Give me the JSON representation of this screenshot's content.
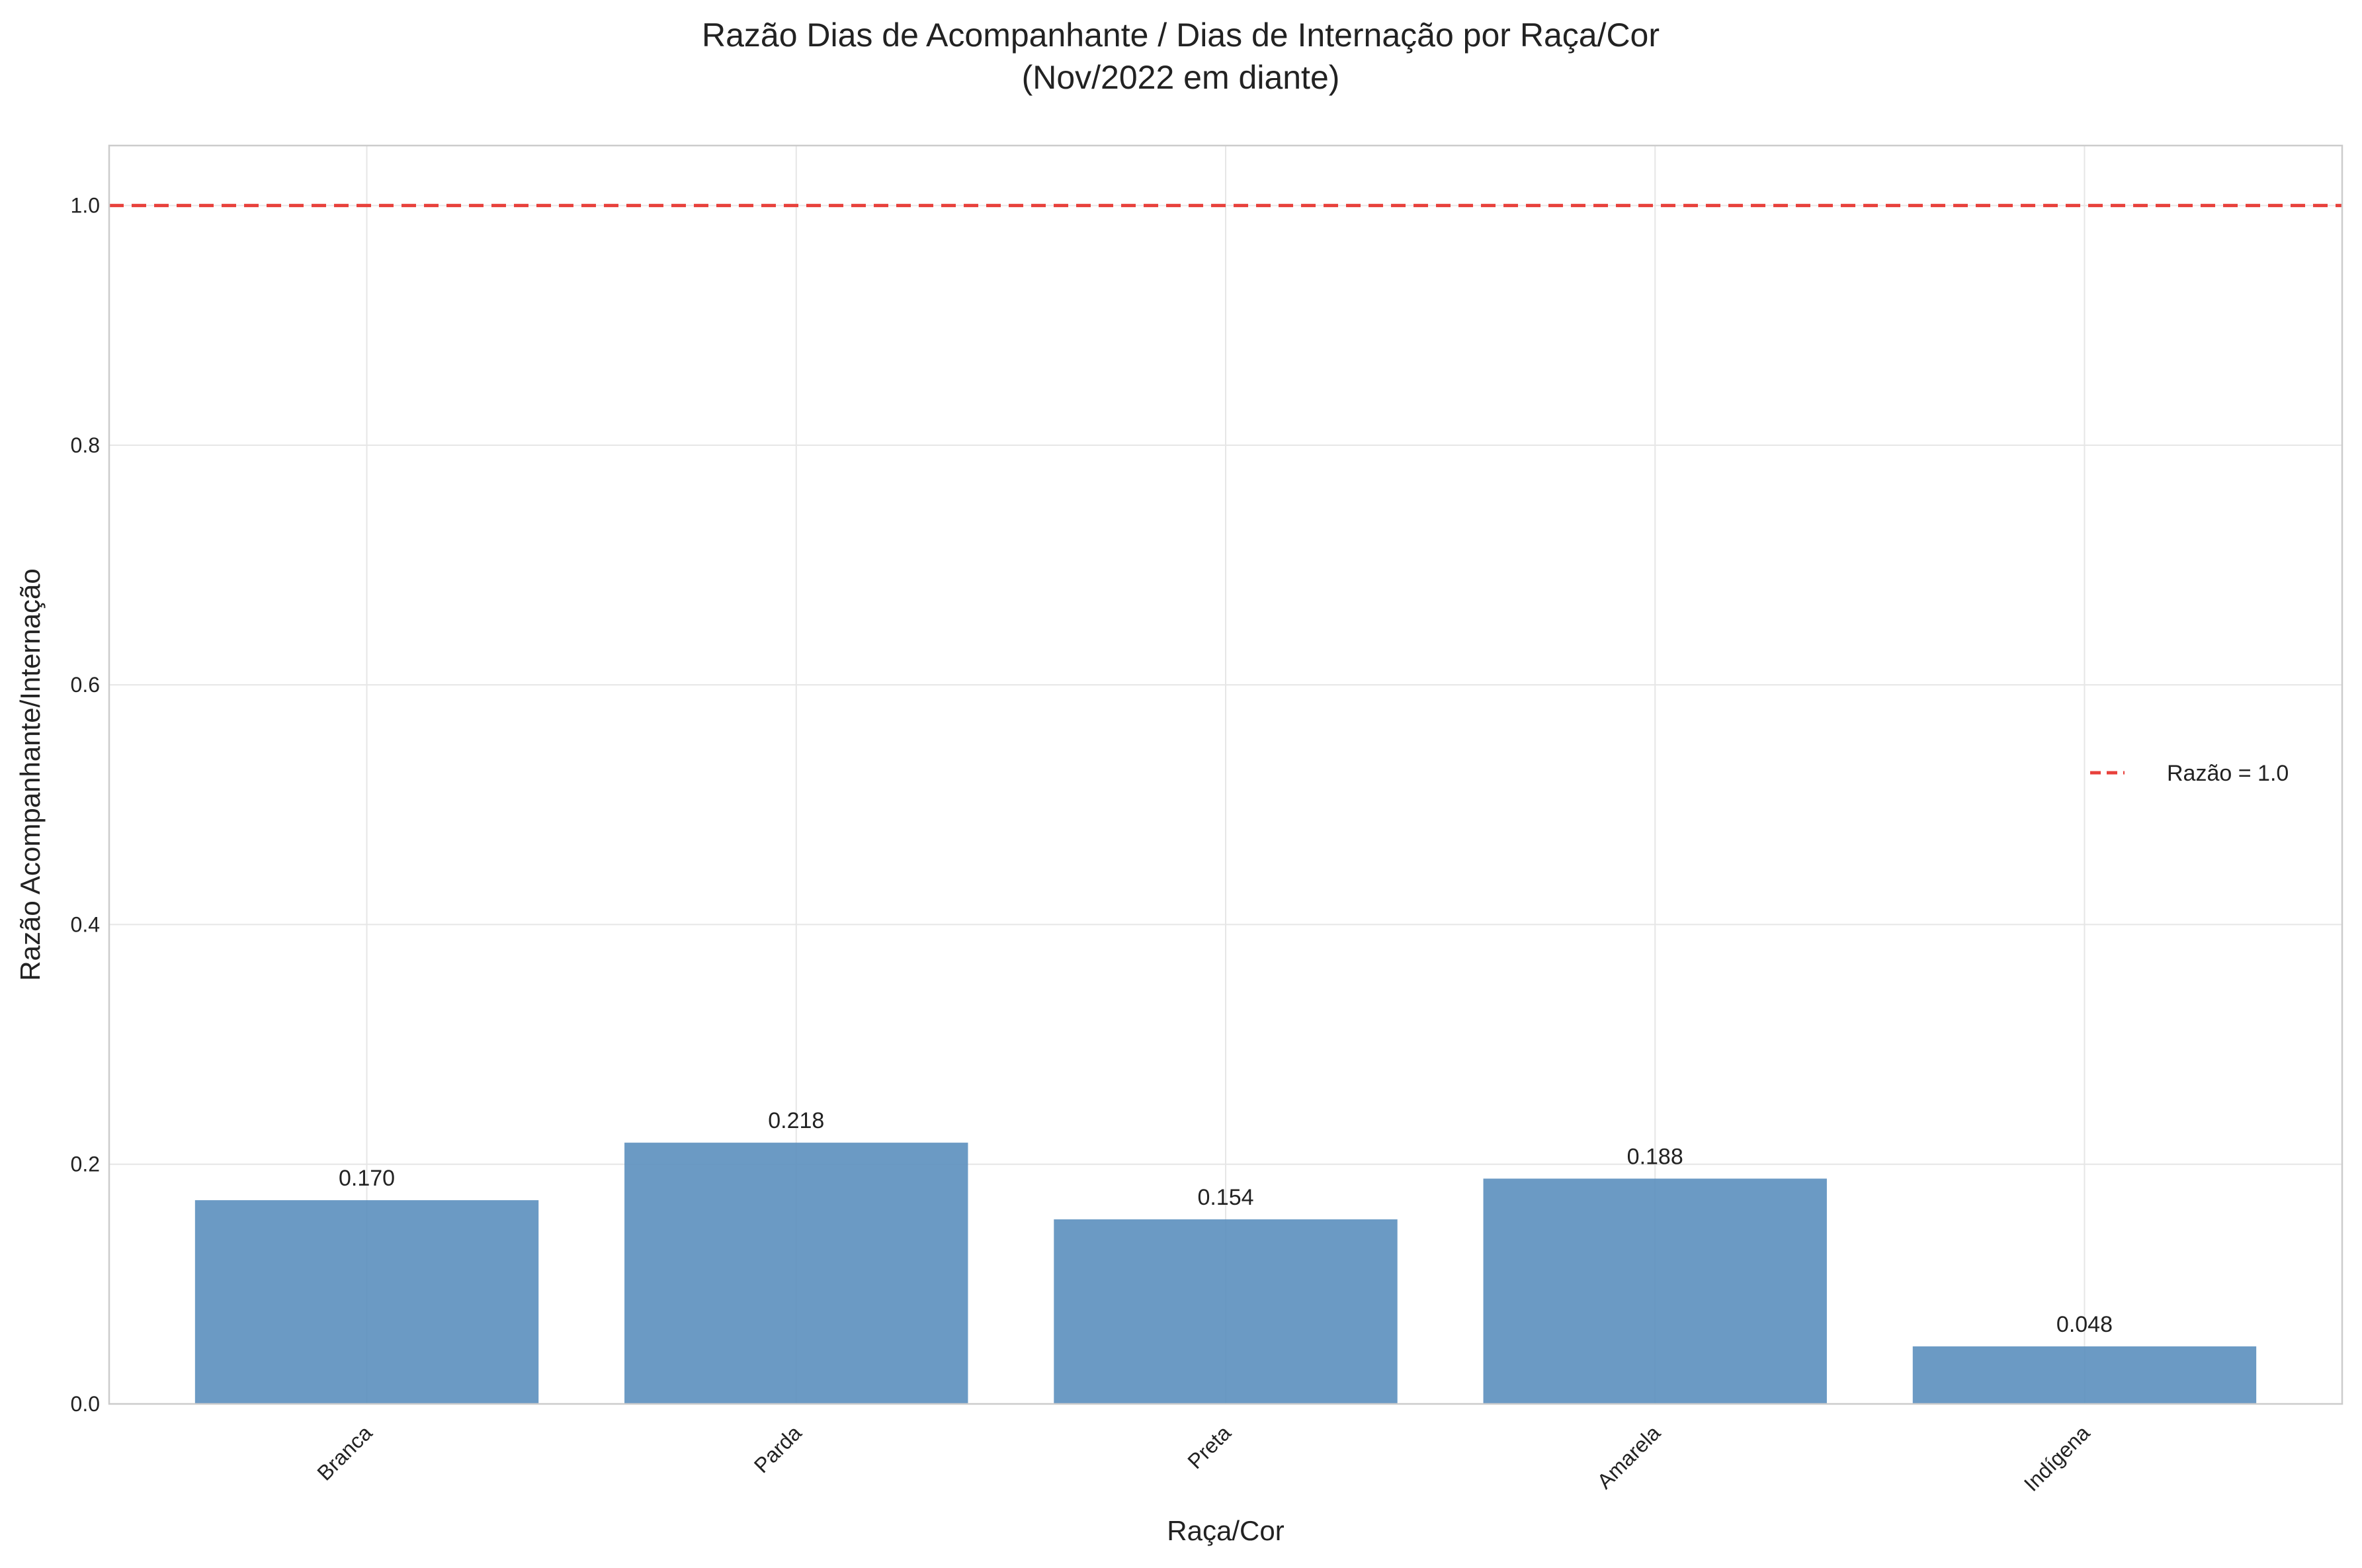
{
  "chart_data": {
    "type": "bar",
    "title": "Razão Dias de Acompanhante / Dias de Internação por Raça/Cor",
    "subtitle": "(Nov/2022 em diante)",
    "xlabel": "Raça/Cor",
    "ylabel": "Razão Acompanhante/Internação",
    "categories": [
      "Branca",
      "Parda",
      "Preta",
      "Amarela",
      "Indígena"
    ],
    "values": [
      0.17,
      0.218,
      0.154,
      0.188,
      0.048
    ],
    "value_labels": [
      "0.170",
      "0.218",
      "0.154",
      "0.188",
      "0.048"
    ],
    "ylim": [
      0,
      1.05
    ],
    "yticks": [
      0.0,
      0.2,
      0.4,
      0.6,
      0.8,
      1.0
    ],
    "ytick_labels": [
      "0.0",
      "0.2",
      "0.4",
      "0.6",
      "0.8",
      "1.0"
    ],
    "reference_line": {
      "value": 1.0,
      "label": "Razão = 1.0",
      "style": "dashed",
      "color": "#e8413c"
    },
    "bar_color": "#5b8fbe",
    "grid": true,
    "legend_position": "center-right"
  }
}
